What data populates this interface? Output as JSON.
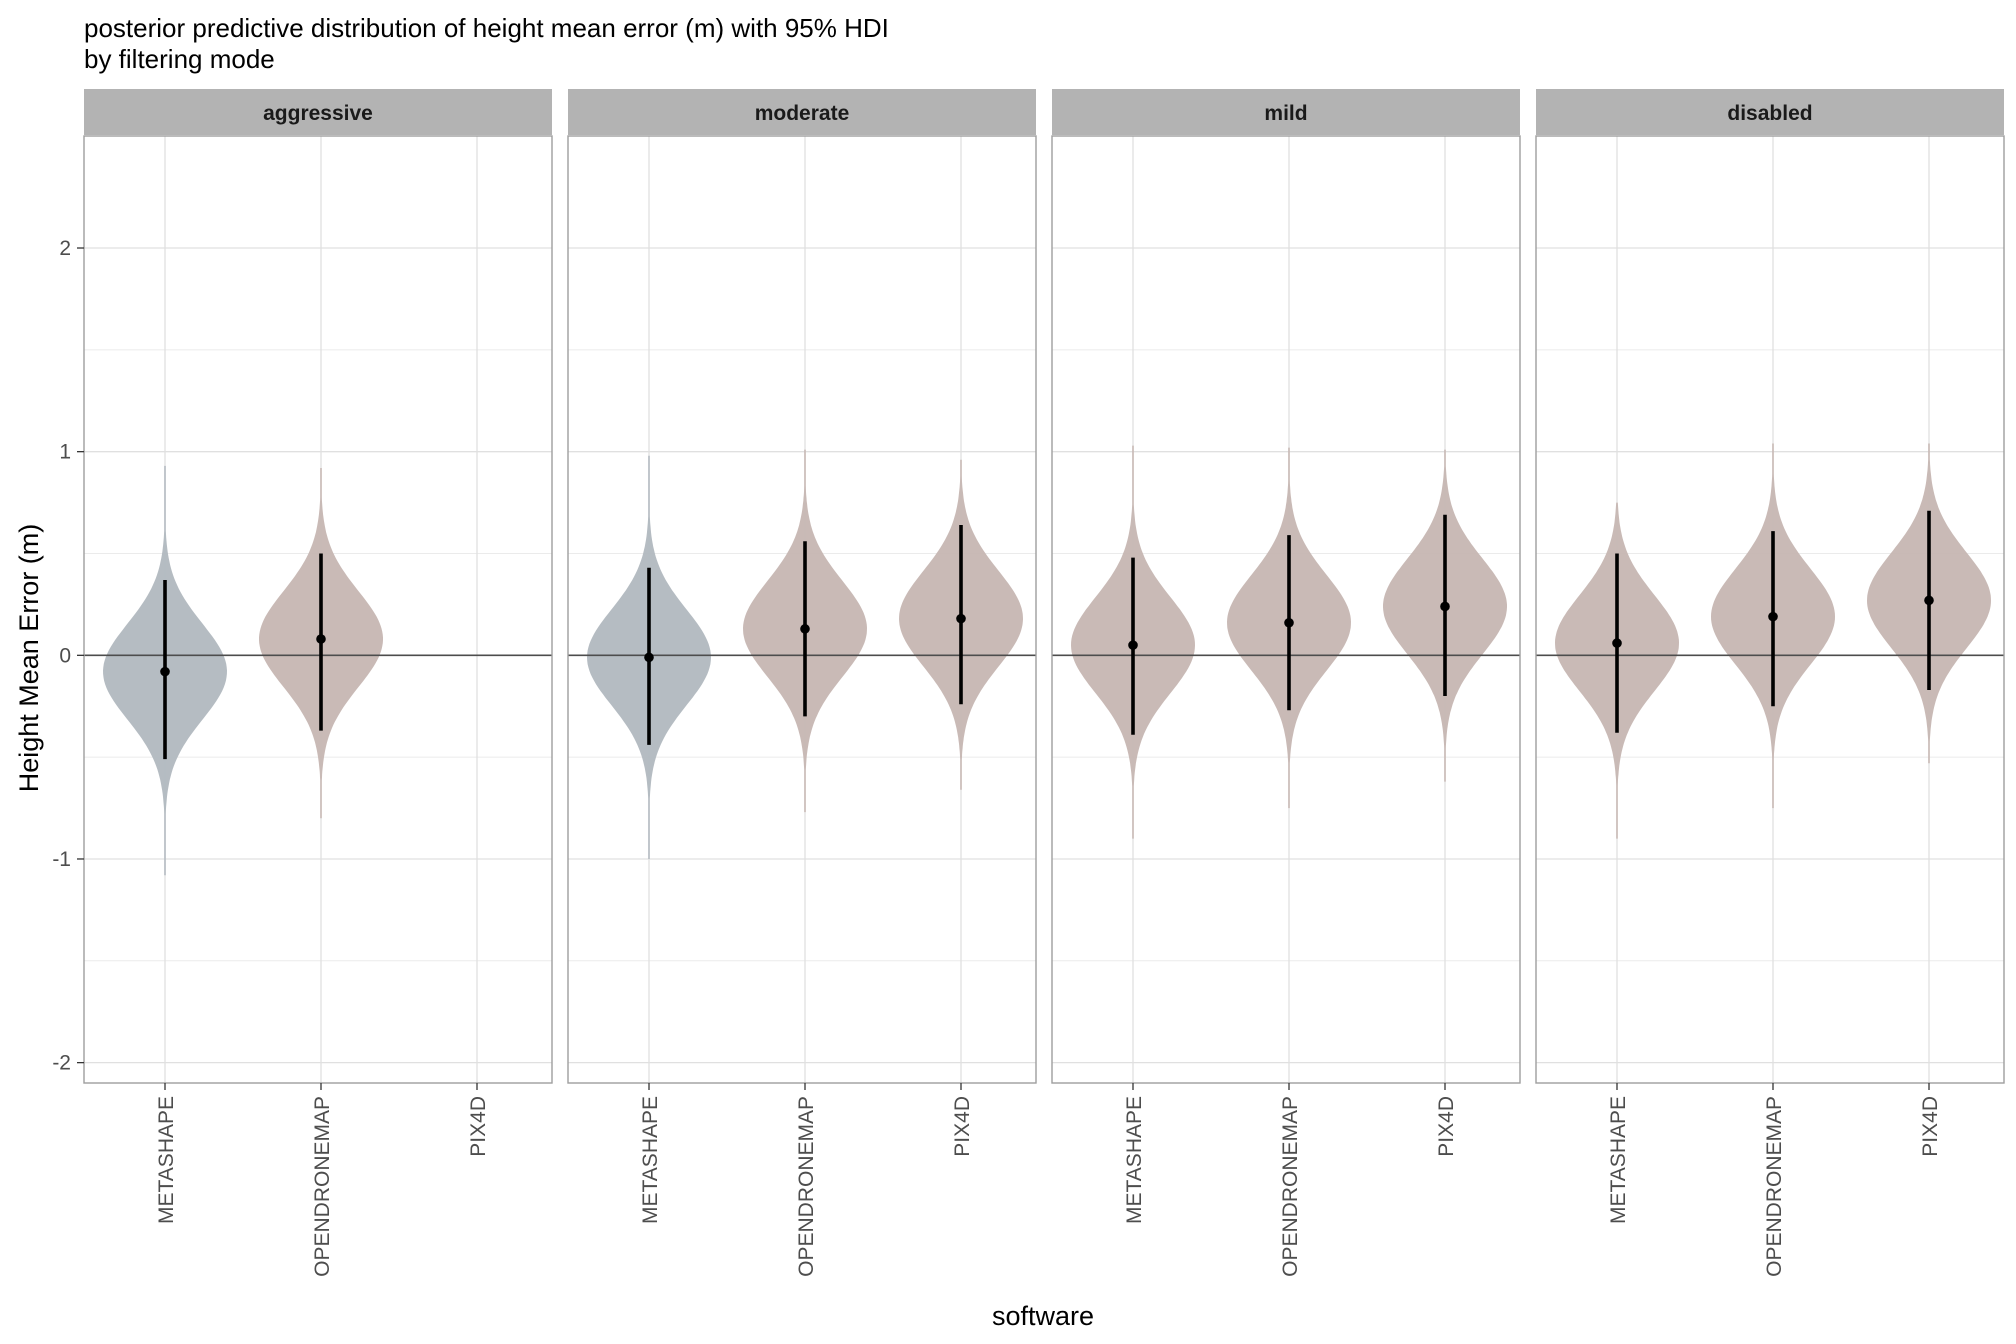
{
  "chart_data": {
    "type": "violin",
    "title": "posterior predictive distribution of height mean error (m) with 95% HDI",
    "subtitle": "by filtering mode",
    "xlabel": "software",
    "ylabel": "Height Mean Error (m)",
    "ylim": [
      -2.1,
      2.55
    ],
    "yticks": [
      -2,
      -1,
      0,
      1,
      2
    ],
    "reference_line": 0,
    "grid": true,
    "categories": [
      "METASHAPE",
      "OPENDRONEMAP",
      "PIX4D"
    ],
    "facets": [
      {
        "label": "aggressive",
        "violins": [
          {
            "software": "METASHAPE",
            "median": -0.08,
            "hdi": [
              -0.51,
              0.37
            ],
            "min": -1.08,
            "max": 0.93,
            "color": "#b1b8bf"
          },
          {
            "software": "OPENDRONEMAP",
            "median": 0.08,
            "hdi": [
              -0.37,
              0.5
            ],
            "min": -0.8,
            "max": 0.92,
            "color": "#c6b6b2"
          }
        ]
      },
      {
        "label": "moderate",
        "violins": [
          {
            "software": "METASHAPE",
            "median": -0.01,
            "hdi": [
              -0.44,
              0.43
            ],
            "min": -1.0,
            "max": 0.98,
            "color": "#b1b8bf"
          },
          {
            "software": "OPENDRONEMAP",
            "median": 0.13,
            "hdi": [
              -0.3,
              0.56
            ],
            "min": -0.77,
            "max": 1.01,
            "color": "#c6b6b2"
          },
          {
            "software": "PIX4D",
            "median": 0.18,
            "hdi": [
              -0.24,
              0.64
            ],
            "min": -0.66,
            "max": 0.96,
            "color": "#c6b6b2"
          }
        ]
      },
      {
        "label": "mild",
        "violins": [
          {
            "software": "METASHAPE",
            "median": 0.05,
            "hdi": [
              -0.39,
              0.48
            ],
            "min": -0.9,
            "max": 1.03,
            "color": "#c6b6b2"
          },
          {
            "software": "OPENDRONEMAP",
            "median": 0.16,
            "hdi": [
              -0.27,
              0.59
            ],
            "min": -0.75,
            "max": 1.02,
            "color": "#c6b6b2"
          },
          {
            "software": "PIX4D",
            "median": 0.24,
            "hdi": [
              -0.2,
              0.69
            ],
            "min": -0.62,
            "max": 1.01,
            "color": "#c6b6b2"
          }
        ]
      },
      {
        "label": "disabled",
        "violins": [
          {
            "software": "METASHAPE",
            "median": 0.06,
            "hdi": [
              -0.38,
              0.5
            ],
            "min": -0.9,
            "max": 0.75,
            "color": "#c6b6b2"
          },
          {
            "software": "OPENDRONEMAP",
            "median": 0.19,
            "hdi": [
              -0.25,
              0.61
            ],
            "min": -0.75,
            "max": 1.04,
            "color": "#c6b6b2"
          },
          {
            "software": "PIX4D",
            "median": 0.27,
            "hdi": [
              -0.17,
              0.71
            ],
            "min": -0.53,
            "max": 1.04,
            "color": "#c6b6b2"
          }
        ]
      }
    ]
  }
}
